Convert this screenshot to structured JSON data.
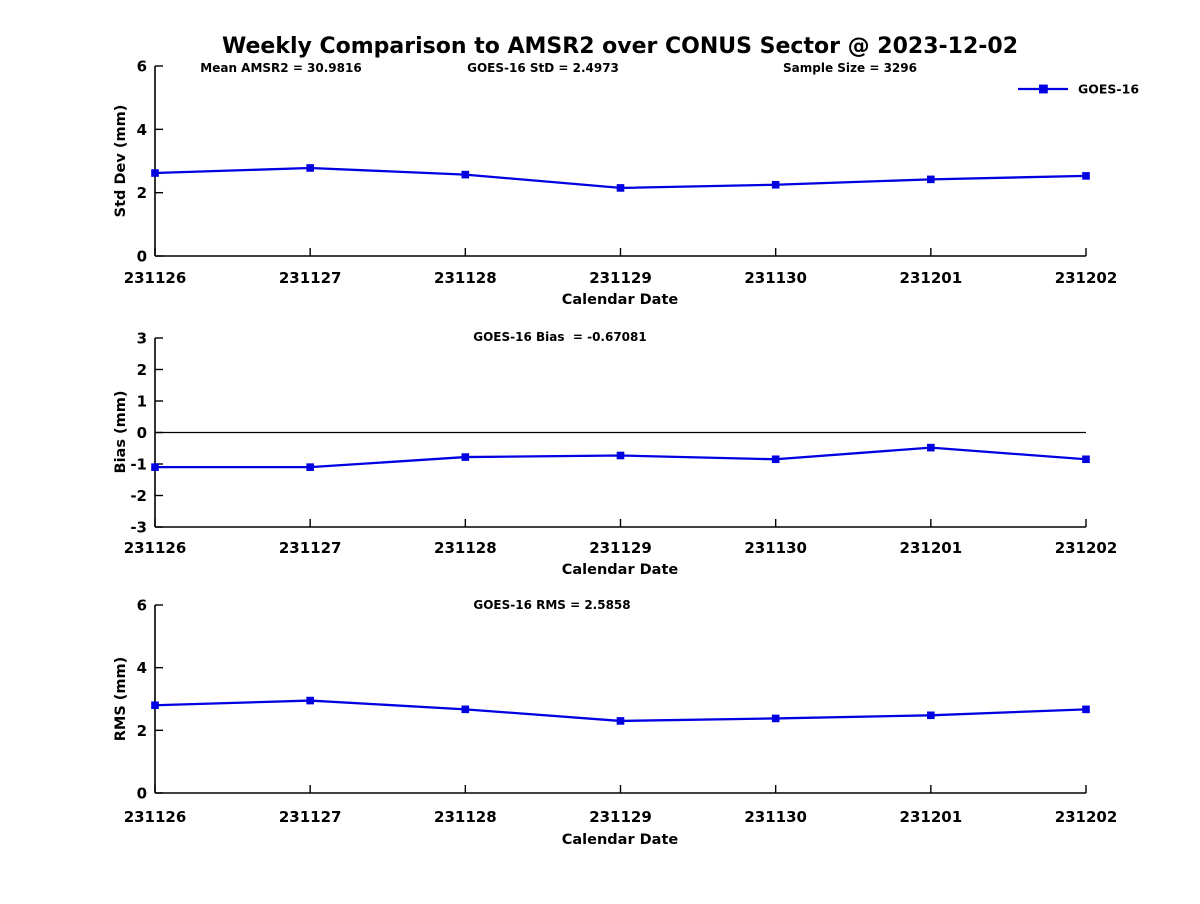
{
  "title": "Weekly Comparison to AMSR2 over CONUS Sector @ 2023-12-02",
  "legend": {
    "label": "GOES-16"
  },
  "colors": {
    "series": "#0000e0",
    "axis": "#000000",
    "text": "#000000",
    "background": "#ffffff"
  },
  "chart_data": [
    {
      "type": "line",
      "name": "std-dev",
      "annotations": [
        "Mean AMSR2 = 30.9816",
        "GOES-16 StD = 2.4973",
        "Sample Size = 3296"
      ],
      "ylabel": "Std Dev (mm)",
      "xlabel": "Calendar Date",
      "ylim": [
        0,
        6
      ],
      "yticks": [
        0,
        2,
        4,
        6
      ],
      "categories": [
        "231126",
        "231127",
        "231128",
        "231129",
        "231130",
        "231201",
        "231202"
      ],
      "series": [
        {
          "name": "GOES-16",
          "marker": "square",
          "values": [
            2.62,
            2.78,
            2.57,
            2.15,
            2.25,
            2.42,
            2.53
          ]
        }
      ],
      "zero_line": false,
      "legend_position": "top-right",
      "grid": false
    },
    {
      "type": "line",
      "name": "bias",
      "annotations": [
        "GOES-16 Bias  = -0.67081"
      ],
      "ylabel": "Bias (mm)",
      "xlabel": "Calendar Date",
      "ylim": [
        -3,
        3
      ],
      "yticks": [
        3,
        2,
        1,
        0,
        -1,
        -2,
        -3
      ],
      "categories": [
        "231126",
        "231127",
        "231128",
        "231129",
        "231130",
        "231201",
        "231202"
      ],
      "series": [
        {
          "name": "GOES-16",
          "marker": "square",
          "values": [
            -1.1,
            -1.1,
            -0.78,
            -0.73,
            -0.85,
            -0.48,
            -0.85
          ]
        }
      ],
      "zero_line": true,
      "grid": false
    },
    {
      "type": "line",
      "name": "rms",
      "annotations": [
        "GOES-16 RMS = 2.5858"
      ],
      "ylabel": "RMS (mm)",
      "xlabel": "Calendar Date",
      "ylim": [
        0,
        6
      ],
      "yticks": [
        0,
        2,
        4,
        6
      ],
      "categories": [
        "231126",
        "231127",
        "231128",
        "231129",
        "231130",
        "231201",
        "231202"
      ],
      "series": [
        {
          "name": "GOES-16",
          "marker": "square",
          "values": [
            2.8,
            2.95,
            2.67,
            2.3,
            2.38,
            2.48,
            2.67
          ]
        }
      ],
      "zero_line": false,
      "grid": false
    }
  ]
}
